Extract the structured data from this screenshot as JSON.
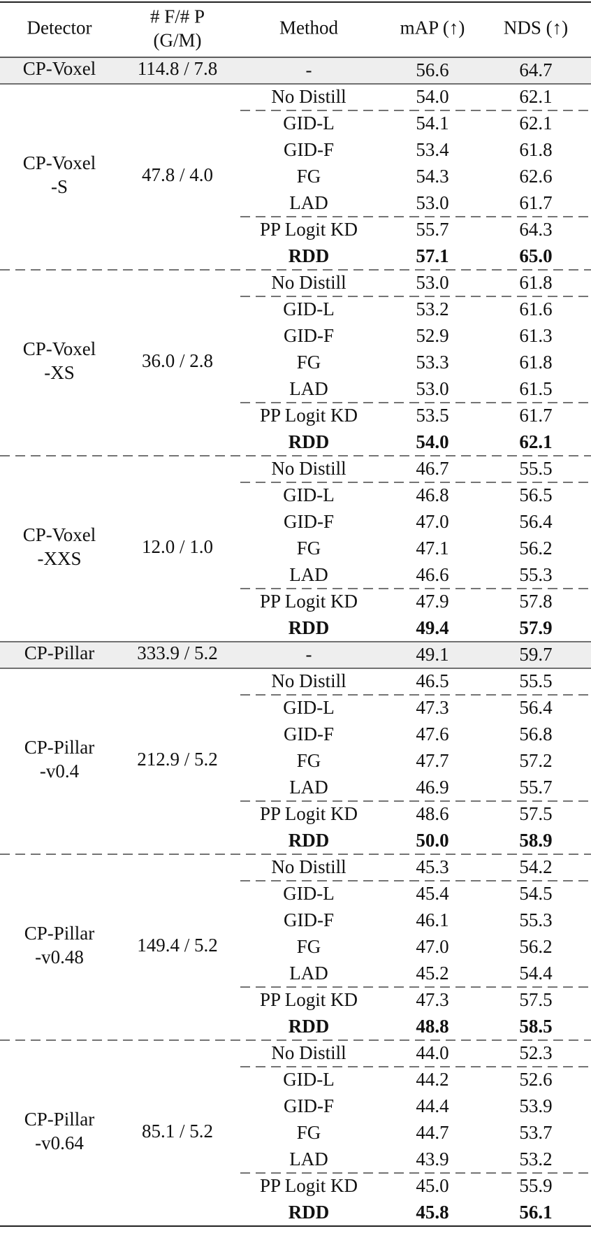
{
  "header": {
    "detector": "Detector",
    "flops": [
      "# F/# P",
      "(G/M)"
    ],
    "method": "Method",
    "map": "mAP (↑)",
    "nds": "NDS (↑)"
  },
  "groups": [
    {
      "detector": [
        "CP-Voxel"
      ],
      "flops": "114.8 / 7.8",
      "baseline": true,
      "rows": [
        {
          "method": "-",
          "map": "56.6",
          "nds": "64.7"
        }
      ]
    },
    {
      "detector": [
        "CP-Voxel",
        "-S"
      ],
      "flops": "47.8 / 4.0",
      "baseline": false,
      "rows": [
        {
          "method": "No Distill",
          "map": "54.0",
          "nds": "62.1"
        },
        {
          "method": "GID-L",
          "map": "54.1",
          "nds": "62.1"
        },
        {
          "method": "GID-F",
          "map": "53.4",
          "nds": "61.8"
        },
        {
          "method": "FG",
          "map": "54.3",
          "nds": "62.6"
        },
        {
          "method": "LAD",
          "map": "53.0",
          "nds": "61.7"
        },
        {
          "method": "PP Logit KD",
          "map": "55.7",
          "nds": "64.3"
        },
        {
          "method": "RDD",
          "map": "57.1",
          "nds": "65.0",
          "bold": true
        }
      ]
    },
    {
      "detector": [
        "CP-Voxel",
        "-XS"
      ],
      "flops": "36.0 / 2.8",
      "baseline": false,
      "rows": [
        {
          "method": "No Distill",
          "map": "53.0",
          "nds": "61.8"
        },
        {
          "method": "GID-L",
          "map": "53.2",
          "nds": "61.6"
        },
        {
          "method": "GID-F",
          "map": "52.9",
          "nds": "61.3"
        },
        {
          "method": "FG",
          "map": "53.3",
          "nds": "61.8"
        },
        {
          "method": "LAD",
          "map": "53.0",
          "nds": "61.5"
        },
        {
          "method": "PP Logit KD",
          "map": "53.5",
          "nds": "61.7"
        },
        {
          "method": "RDD",
          "map": "54.0",
          "nds": "62.1",
          "bold": true
        }
      ]
    },
    {
      "detector": [
        "CP-Voxel",
        "-XXS"
      ],
      "flops": "12.0 / 1.0",
      "baseline": false,
      "rows": [
        {
          "method": "No Distill",
          "map": "46.7",
          "nds": "55.5"
        },
        {
          "method": "GID-L",
          "map": "46.8",
          "nds": "56.5"
        },
        {
          "method": "GID-F",
          "map": "47.0",
          "nds": "56.4"
        },
        {
          "method": "FG",
          "map": "47.1",
          "nds": "56.2"
        },
        {
          "method": "LAD",
          "map": "46.6",
          "nds": "55.3"
        },
        {
          "method": "PP Logit KD",
          "map": "47.9",
          "nds": "57.8"
        },
        {
          "method": "RDD",
          "map": "49.4",
          "nds": "57.9",
          "bold": true
        }
      ]
    },
    {
      "detector": [
        "CP-Pillar"
      ],
      "flops": "333.9 / 5.2",
      "baseline": true,
      "rows": [
        {
          "method": "-",
          "map": "49.1",
          "nds": "59.7"
        }
      ]
    },
    {
      "detector": [
        "CP-Pillar",
        "-v0.4"
      ],
      "flops": "212.9 / 5.2",
      "baseline": false,
      "rows": [
        {
          "method": "No Distill",
          "map": "46.5",
          "nds": "55.5"
        },
        {
          "method": "GID-L",
          "map": "47.3",
          "nds": "56.4"
        },
        {
          "method": "GID-F",
          "map": "47.6",
          "nds": "56.8"
        },
        {
          "method": "FG",
          "map": "47.7",
          "nds": "57.2"
        },
        {
          "method": "LAD",
          "map": "46.9",
          "nds": "55.7"
        },
        {
          "method": "PP Logit KD",
          "map": "48.6",
          "nds": "57.5"
        },
        {
          "method": "RDD",
          "map": "50.0",
          "nds": "58.9",
          "bold": true
        }
      ]
    },
    {
      "detector": [
        "CP-Pillar",
        "-v0.48"
      ],
      "flops": "149.4 / 5.2",
      "baseline": false,
      "rows": [
        {
          "method": "No Distill",
          "map": "45.3",
          "nds": "54.2"
        },
        {
          "method": "GID-L",
          "map": "45.4",
          "nds": "54.5"
        },
        {
          "method": "GID-F",
          "map": "46.1",
          "nds": "55.3"
        },
        {
          "method": "FG",
          "map": "47.0",
          "nds": "56.2"
        },
        {
          "method": "LAD",
          "map": "45.2",
          "nds": "54.4"
        },
        {
          "method": "PP Logit KD",
          "map": "47.3",
          "nds": "57.5"
        },
        {
          "method": "RDD",
          "map": "48.8",
          "nds": "58.5",
          "bold": true
        }
      ]
    },
    {
      "detector": [
        "CP-Pillar",
        "-v0.64"
      ],
      "flops": "85.1 / 5.2",
      "baseline": false,
      "rows": [
        {
          "method": "No Distill",
          "map": "44.0",
          "nds": "52.3"
        },
        {
          "method": "GID-L",
          "map": "44.2",
          "nds": "52.6"
        },
        {
          "method": "GID-F",
          "map": "44.4",
          "nds": "53.9"
        },
        {
          "method": "FG",
          "map": "44.7",
          "nds": "53.7"
        },
        {
          "method": "LAD",
          "map": "43.9",
          "nds": "53.2"
        },
        {
          "method": "PP Logit KD",
          "map": "45.0",
          "nds": "55.9"
        },
        {
          "method": "RDD",
          "map": "45.8",
          "nds": "56.1",
          "bold": true
        }
      ]
    }
  ]
}
